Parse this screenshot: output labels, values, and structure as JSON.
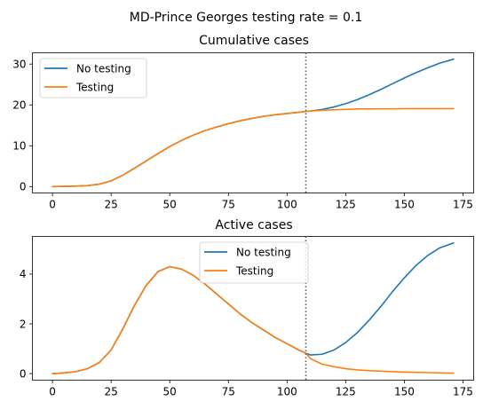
{
  "figure": {
    "suptitle": "MD-Prince Georges testing rate = 0.1",
    "line_colors": {
      "no_testing": "#1f77b4",
      "testing": "#ff7f0e",
      "divider": "#555555"
    }
  },
  "chart_data": [
    {
      "type": "line",
      "title": "Cumulative cases",
      "xlabel": "",
      "ylabel": "",
      "xlim": [
        0,
        171
      ],
      "ylim": [
        0,
        31.2
      ],
      "xticks": [
        0,
        25,
        50,
        75,
        100,
        125,
        150,
        175
      ],
      "yticks": [
        0,
        10,
        20,
        30
      ],
      "grid": false,
      "legend": "top-left",
      "vline_x": 108,
      "series": [
        {
          "name": "No testing",
          "color": "#1f77b4",
          "x": [
            0,
            5,
            10,
            15,
            20,
            25,
            30,
            35,
            40,
            45,
            50,
            55,
            60,
            65,
            70,
            75,
            80,
            85,
            90,
            95,
            100,
            105,
            108,
            110,
            115,
            120,
            125,
            130,
            135,
            140,
            145,
            150,
            155,
            160,
            165,
            171
          ],
          "values": [
            0,
            0.05,
            0.1,
            0.25,
            0.6,
            1.4,
            2.8,
            4.5,
            6.3,
            8.1,
            9.8,
            11.3,
            12.6,
            13.7,
            14.6,
            15.4,
            16.1,
            16.7,
            17.2,
            17.6,
            17.9,
            18.2,
            18.4,
            18.5,
            18.9,
            19.5,
            20.3,
            21.3,
            22.5,
            23.8,
            25.2,
            26.6,
            27.9,
            29.1,
            30.2,
            31.2
          ]
        },
        {
          "name": "Testing",
          "color": "#ff7f0e",
          "x": [
            0,
            5,
            10,
            15,
            20,
            25,
            30,
            35,
            40,
            45,
            50,
            55,
            60,
            65,
            70,
            75,
            80,
            85,
            90,
            95,
            100,
            105,
            108,
            110,
            115,
            120,
            125,
            130,
            135,
            140,
            145,
            150,
            155,
            160,
            165,
            171
          ],
          "values": [
            0,
            0.05,
            0.1,
            0.25,
            0.6,
            1.4,
            2.8,
            4.5,
            6.3,
            8.1,
            9.8,
            11.3,
            12.6,
            13.7,
            14.6,
            15.4,
            16.1,
            16.7,
            17.2,
            17.6,
            17.9,
            18.2,
            18.4,
            18.5,
            18.7,
            18.8,
            18.9,
            19.0,
            19.0,
            19.05,
            19.05,
            19.1,
            19.1,
            19.1,
            19.1,
            19.1
          ]
        }
      ]
    },
    {
      "type": "line",
      "title": "Active cases",
      "xlabel": "",
      "ylabel": "",
      "xlim": [
        0,
        171
      ],
      "ylim": [
        0,
        5.25
      ],
      "xticks": [
        0,
        25,
        50,
        75,
        100,
        125,
        150,
        175
      ],
      "yticks": [
        0,
        2,
        4
      ],
      "grid": false,
      "legend": "top-center",
      "vline_x": 108,
      "series": [
        {
          "name": "No testing",
          "color": "#1f77b4",
          "x": [
            0,
            5,
            10,
            15,
            20,
            25,
            30,
            35,
            40,
            45,
            50,
            55,
            60,
            65,
            70,
            75,
            80,
            85,
            90,
            95,
            100,
            105,
            108,
            110,
            115,
            120,
            125,
            130,
            135,
            140,
            145,
            150,
            155,
            160,
            165,
            171
          ],
          "values": [
            0,
            0.03,
            0.08,
            0.2,
            0.45,
            0.95,
            1.8,
            2.75,
            3.55,
            4.1,
            4.3,
            4.2,
            3.95,
            3.6,
            3.2,
            2.8,
            2.4,
            2.05,
            1.75,
            1.45,
            1.2,
            0.95,
            0.82,
            0.75,
            0.78,
            0.95,
            1.25,
            1.65,
            2.15,
            2.7,
            3.3,
            3.85,
            4.35,
            4.75,
            5.05,
            5.25
          ]
        },
        {
          "name": "Testing",
          "color": "#ff7f0e",
          "x": [
            0,
            5,
            10,
            15,
            20,
            25,
            30,
            35,
            40,
            45,
            50,
            55,
            60,
            65,
            70,
            75,
            80,
            85,
            90,
            95,
            100,
            105,
            108,
            110,
            115,
            120,
            125,
            130,
            135,
            140,
            145,
            150,
            155,
            160,
            165,
            171
          ],
          "values": [
            0,
            0.03,
            0.08,
            0.2,
            0.45,
            0.95,
            1.8,
            2.75,
            3.55,
            4.1,
            4.3,
            4.2,
            3.95,
            3.6,
            3.2,
            2.8,
            2.4,
            2.05,
            1.75,
            1.45,
            1.2,
            0.95,
            0.82,
            0.6,
            0.38,
            0.28,
            0.2,
            0.15,
            0.12,
            0.1,
            0.08,
            0.06,
            0.05,
            0.04,
            0.03,
            0.02
          ]
        }
      ]
    }
  ]
}
